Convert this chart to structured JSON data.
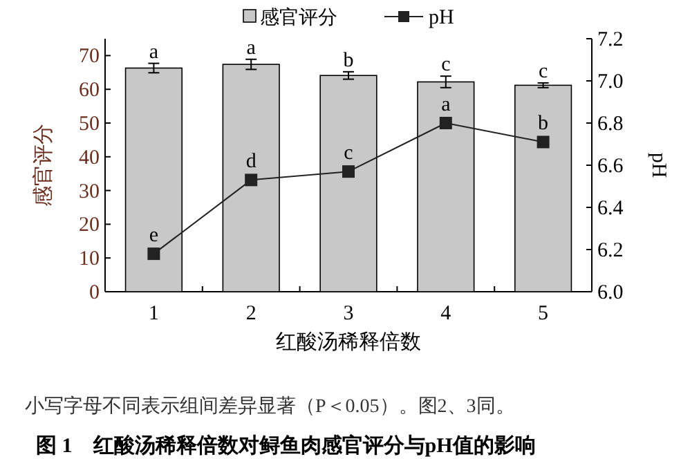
{
  "chart_data": {
    "type": "bar",
    "title": "图 1　红酸汤稀释倍数对鲟鱼肉感官评分与pH值的影响",
    "xlabel": "红酸汤稀释倍数",
    "ylabel": "感官评分",
    "y2label": "pH",
    "annotations": [
      "小写字母不同表示组间差异显著（P＜0.05）。图2、3同。"
    ],
    "categories": [
      "1",
      "2",
      "3",
      "4",
      "5"
    ],
    "series": [
      {
        "name": "感官评分",
        "color": "#c8c8c8",
        "values": [
          66.3,
          67.4,
          64.1,
          62.2,
          61.2
        ],
        "errors": [
          1.4,
          1.5,
          1.1,
          1.7,
          0.7
        ],
        "value_labels": [
          "a",
          "a",
          "b",
          "c",
          "c"
        ]
      },
      {
        "name": "pH",
        "type": "line",
        "axis": "y2",
        "color": "#222222",
        "marker": "square",
        "values": [
          6.18,
          6.53,
          6.57,
          6.8,
          6.71
        ],
        "value_labels": [
          "e",
          "d",
          "c",
          "a",
          "b"
        ]
      }
    ],
    "ylim": [
      0,
      75
    ],
    "yticks": [
      0,
      10,
      20,
      30,
      40,
      50,
      60,
      70
    ],
    "y2lim": [
      6.0,
      7.2
    ],
    "y2ticks": [
      {
        "value": 6.0,
        "label": "6.0"
      },
      6.2,
      6.4,
      6.6,
      6.8,
      {
        "value": 7.0,
        "label": "7.0"
      },
      7.2
    ],
    "grid": false,
    "legend": "top"
  }
}
